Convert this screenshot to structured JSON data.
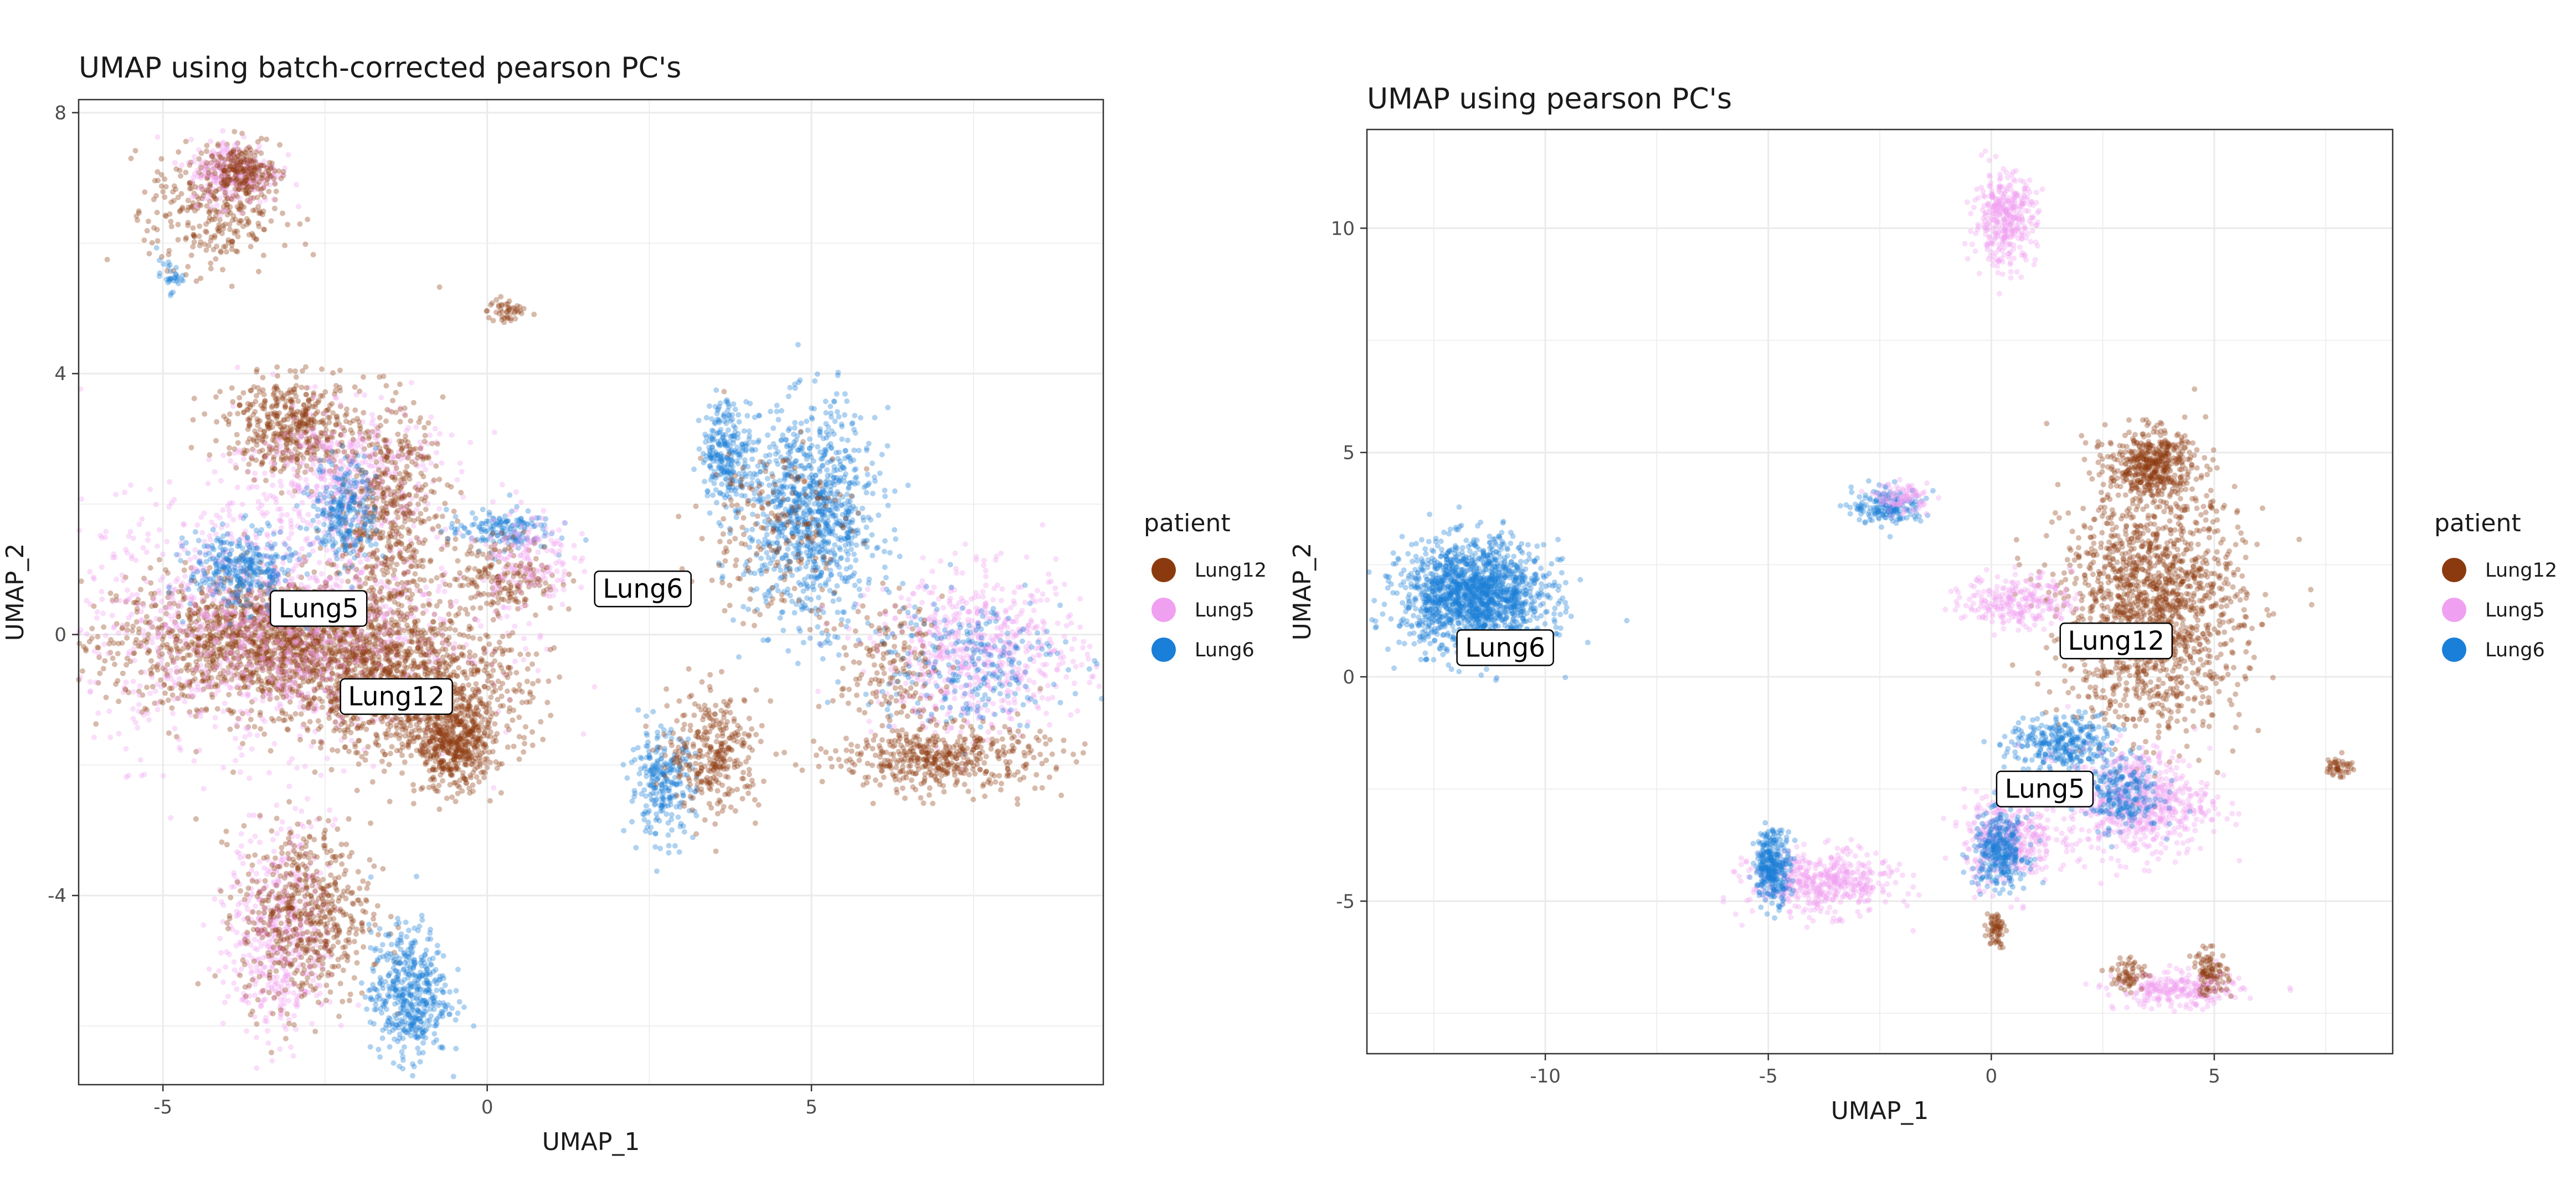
{
  "chart_data": [
    {
      "type": "scatter",
      "title": "UMAP using batch-corrected pearson PC's",
      "xlabel": "UMAP_1",
      "ylabel": "UMAP_2",
      "xlim": [
        -6.3,
        9.5
      ],
      "ylim": [
        -6.9,
        8.2
      ],
      "xticks": [
        -5,
        0,
        5
      ],
      "yticks": [
        -4,
        0,
        4,
        8
      ],
      "grid": true,
      "legend": {
        "title": "patient",
        "placement": "right"
      },
      "series": [
        {
          "name": "Lung12",
          "color": "#8B3A0F"
        },
        {
          "name": "Lung5",
          "color": "#F0A0F0"
        },
        {
          "name": "Lung6",
          "color": "#1A7FD8"
        }
      ],
      "labels": [
        {
          "text": "Lung5",
          "x": -2.6,
          "y": 0.4
        },
        {
          "text": "Lung12",
          "x": -1.4,
          "y": -0.95
        },
        {
          "text": "Lung6",
          "x": 2.4,
          "y": 0.7
        }
      ],
      "clusters": [
        {
          "series": "Lung12",
          "x": -3.2,
          "y": -0.1,
          "sx": 1.25,
          "sy": 0.5,
          "weight": 6
        },
        {
          "series": "Lung5",
          "x": -3.3,
          "y": 0.2,
          "sx": 1.5,
          "sy": 1.0,
          "weight": 4
        },
        {
          "series": "Lung6",
          "x": -3.8,
          "y": 1.0,
          "sx": 0.4,
          "sy": 0.3,
          "weight": 1
        },
        {
          "series": "Lung12",
          "x": -1.2,
          "y": -0.9,
          "sx": 0.9,
          "sy": 0.5,
          "weight": 3
        },
        {
          "series": "Lung12",
          "x": -0.5,
          "y": -1.7,
          "sx": 0.3,
          "sy": 0.35,
          "weight": 1.5
        },
        {
          "series": "Lung12",
          "x": -3.0,
          "y": 3.2,
          "sx": 0.5,
          "sy": 0.35,
          "weight": 1.5
        },
        {
          "series": "Lung5",
          "x": -2.2,
          "y": 2.5,
          "sx": 0.7,
          "sy": 0.5,
          "weight": 1.2
        },
        {
          "series": "Lung12",
          "x": -1.5,
          "y": 1.9,
          "sx": 0.4,
          "sy": 0.8,
          "weight": 1.5
        },
        {
          "series": "Lung6",
          "x": -2.2,
          "y": 1.9,
          "sx": 0.25,
          "sy": 0.4,
          "weight": 0.8
        },
        {
          "series": "Lung12",
          "x": -4.2,
          "y": 6.5,
          "sx": 0.5,
          "sy": 0.5,
          "weight": 1
        },
        {
          "series": "Lung5",
          "x": -3.9,
          "y": 7.1,
          "sx": 0.35,
          "sy": 0.25,
          "weight": 0.8
        },
        {
          "series": "Lung12",
          "x": -3.8,
          "y": 7.1,
          "sx": 0.25,
          "sy": 0.18,
          "weight": 0.6
        },
        {
          "series": "Lung6",
          "x": -4.9,
          "y": 5.5,
          "sx": 0.1,
          "sy": 0.12,
          "weight": 0.1
        },
        {
          "series": "Lung12",
          "x": 0.3,
          "y": 4.95,
          "sx": 0.15,
          "sy": 0.1,
          "weight": 0.15
        },
        {
          "series": "Lung6",
          "x": 0.2,
          "y": 1.6,
          "sx": 0.4,
          "sy": 0.15,
          "weight": 0.5
        },
        {
          "series": "Lung12",
          "x": 0.3,
          "y": 0.9,
          "sx": 0.4,
          "sy": 0.3,
          "weight": 0.6
        },
        {
          "series": "Lung5",
          "x": 0.6,
          "y": 1.2,
          "sx": 0.35,
          "sy": 0.4,
          "weight": 0.5
        },
        {
          "series": "Lung6",
          "x": 5.0,
          "y": 1.8,
          "sx": 0.5,
          "sy": 0.8,
          "weight": 3
        },
        {
          "series": "Lung6",
          "x": 3.7,
          "y": 2.8,
          "sx": 0.2,
          "sy": 0.4,
          "weight": 0.8
        },
        {
          "series": "Lung12",
          "x": 4.4,
          "y": 1.6,
          "sx": 0.6,
          "sy": 0.7,
          "weight": 0.6
        },
        {
          "series": "Lung6",
          "x": 2.7,
          "y": -2.3,
          "sx": 0.25,
          "sy": 0.4,
          "weight": 0.8
        },
        {
          "series": "Lung12",
          "x": 3.5,
          "y": -1.8,
          "sx": 0.35,
          "sy": 0.45,
          "weight": 1
        },
        {
          "series": "Lung5",
          "x": 7.6,
          "y": -0.3,
          "sx": 0.8,
          "sy": 0.6,
          "weight": 2
        },
        {
          "series": "Lung6",
          "x": 7.3,
          "y": -0.4,
          "sx": 0.8,
          "sy": 0.5,
          "weight": 0.8
        },
        {
          "series": "Lung12",
          "x": 7.0,
          "y": -1.9,
          "sx": 0.8,
          "sy": 0.25,
          "weight": 1.5
        },
        {
          "series": "Lung12",
          "x": 6.2,
          "y": -0.5,
          "sx": 0.4,
          "sy": 0.5,
          "weight": 0.5
        },
        {
          "series": "Lung5",
          "x": -3.2,
          "y": -4.6,
          "sx": 0.4,
          "sy": 0.8,
          "weight": 1.5
        },
        {
          "series": "Lung12",
          "x": -2.8,
          "y": -4.3,
          "sx": 0.5,
          "sy": 0.7,
          "weight": 1.8
        },
        {
          "series": "Lung6",
          "x": -1.2,
          "y": -5.5,
          "sx": 0.3,
          "sy": 0.5,
          "weight": 1.5
        }
      ]
    },
    {
      "type": "scatter",
      "title": "UMAP using pearson PC's",
      "xlabel": "UMAP_1",
      "ylabel": "UMAP_2",
      "xlim": [
        -14.0,
        9.0
      ],
      "ylim": [
        -8.4,
        12.2
      ],
      "xticks": [
        -10,
        -5,
        0,
        5
      ],
      "yticks": [
        -5,
        0,
        5,
        10
      ],
      "grid": true,
      "legend": {
        "title": "patient",
        "placement": "right"
      },
      "series": [
        {
          "name": "Lung12",
          "color": "#8B3A0F"
        },
        {
          "name": "Lung5",
          "color": "#F0A0F0"
        },
        {
          "name": "Lung6",
          "color": "#1A7FD8"
        }
      ],
      "labels": [
        {
          "text": "Lung6",
          "x": -10.9,
          "y": 0.65
        },
        {
          "text": "Lung12",
          "x": 2.8,
          "y": 0.8
        },
        {
          "text": "Lung5",
          "x": 1.2,
          "y": -2.5
        }
      ],
      "clusters": [
        {
          "series": "Lung6",
          "x": -11.6,
          "y": 1.8,
          "sx": 0.8,
          "sy": 0.6,
          "weight": 5
        },
        {
          "series": "Lung12",
          "x": 3.6,
          "y": 1.5,
          "sx": 1.0,
          "sy": 1.3,
          "weight": 5
        },
        {
          "series": "Lung12",
          "x": 3.6,
          "y": 4.7,
          "sx": 0.5,
          "sy": 0.4,
          "weight": 1.5
        },
        {
          "series": "Lung5",
          "x": 0.6,
          "y": 1.7,
          "sx": 0.6,
          "sy": 0.3,
          "weight": 0.8
        },
        {
          "series": "Lung6",
          "x": 1.6,
          "y": -1.5,
          "sx": 0.6,
          "sy": 0.3,
          "weight": 1
        },
        {
          "series": "Lung5",
          "x": 3.3,
          "y": -2.8,
          "sx": 0.8,
          "sy": 0.6,
          "weight": 2
        },
        {
          "series": "Lung6",
          "x": 2.8,
          "y": -2.6,
          "sx": 0.5,
          "sy": 0.4,
          "weight": 0.8
        },
        {
          "series": "Lung5",
          "x": 0.4,
          "y": -3.6,
          "sx": 0.5,
          "sy": 0.5,
          "weight": 1.2
        },
        {
          "series": "Lung6",
          "x": 0.2,
          "y": -3.9,
          "sx": 0.3,
          "sy": 0.4,
          "weight": 1
        },
        {
          "series": "Lung5",
          "x": -3.8,
          "y": -4.6,
          "sx": 0.8,
          "sy": 0.35,
          "weight": 1.5
        },
        {
          "series": "Lung6",
          "x": -4.9,
          "y": -4.2,
          "sx": 0.2,
          "sy": 0.4,
          "weight": 1
        },
        {
          "series": "Lung12",
          "x": 0.1,
          "y": -5.6,
          "sx": 0.1,
          "sy": 0.2,
          "weight": 0.2
        },
        {
          "series": "Lung5",
          "x": 0.3,
          "y": 10.2,
          "sx": 0.35,
          "sy": 0.5,
          "weight": 1.2
        },
        {
          "series": "Lung6",
          "x": -2.3,
          "y": 3.8,
          "sx": 0.4,
          "sy": 0.2,
          "weight": 0.6
        },
        {
          "series": "Lung5",
          "x": -2.0,
          "y": 4.0,
          "sx": 0.3,
          "sy": 0.15,
          "weight": 0.3
        },
        {
          "series": "Lung5",
          "x": 4.2,
          "y": -7.0,
          "sx": 0.7,
          "sy": 0.2,
          "weight": 0.8
        },
        {
          "series": "Lung12",
          "x": 4.9,
          "y": -6.6,
          "sx": 0.2,
          "sy": 0.25,
          "weight": 0.3
        },
        {
          "series": "Lung12",
          "x": 3.1,
          "y": -6.6,
          "sx": 0.2,
          "sy": 0.2,
          "weight": 0.2
        },
        {
          "series": "Lung12",
          "x": 7.8,
          "y": -2.0,
          "sx": 0.15,
          "sy": 0.12,
          "weight": 0.15
        }
      ]
    }
  ]
}
